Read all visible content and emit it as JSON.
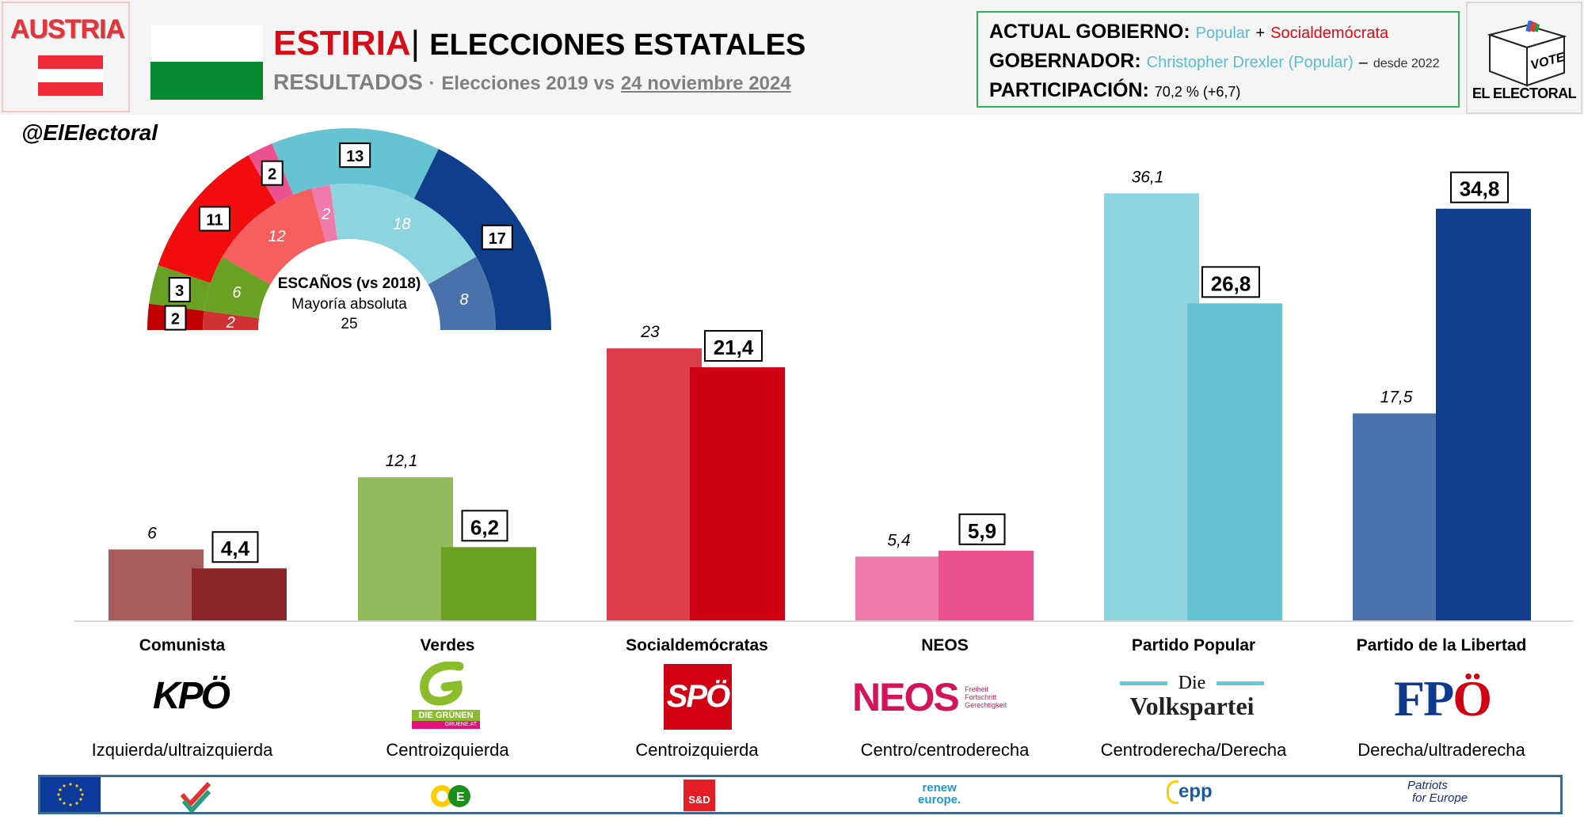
{
  "header": {
    "country": "AUSTRIA",
    "title_region": "ESTIRIA",
    "title_separator": "|",
    "title_rest": "ELECCIONES ESTATALES",
    "subtitle_main": "RESULTADOS",
    "subtitle_dot": "·",
    "subtitle_prefix": "Elecciones 2019 vs",
    "subtitle_date": "24 noviembre 2024",
    "colors": {
      "title_region": "#d40d18",
      "flag_red": "#ee2b3b",
      "region_flag_green": "#078930"
    }
  },
  "info": {
    "gov_label": "ACTUAL GOBIERNO:",
    "gov_party1": "Popular",
    "gov_plus": "+",
    "gov_party2": "Socialdemócrata",
    "governor_label": "GOBERNADOR:",
    "governor_name": "Christopher Drexler (Popular)",
    "governor_dash": "–",
    "governor_since": "desde 2022",
    "turnout_label": "PARTICIPACIÓN:",
    "turnout_value": "70,2 % (+6,7)"
  },
  "brand": {
    "vote_text": "VOTE",
    "name": "EL ELECTORAL",
    "handle": "@ElElectoral"
  },
  "hemicycle": {
    "center_title": "ESCAÑOS (vs 2018)",
    "center_line2": "Mayoría absoluta",
    "center_line3": "25"
  },
  "chart_data": [
    {
      "type": "bar",
      "title": "Resultados (%) Elecciones 2019 vs 2024",
      "categories": [
        "Comunista",
        "Verdes",
        "Socialdemócratas",
        "NEOS",
        "Partido Popular",
        "Partido de la Libertad"
      ],
      "series": [
        {
          "name": "2019",
          "values": [
            6,
            12.1,
            23,
            5.4,
            36.1,
            17.5
          ],
          "labels": [
            "6",
            "12,1",
            "23",
            "5,4",
            "36,1",
            "17,5"
          ],
          "colors": [
            "#a85c5c",
            "#92bb5c",
            "#db3e4a",
            "#ef7bab",
            "#8dd4de",
            "#4a71aa"
          ]
        },
        {
          "name": "2024",
          "values": [
            4.4,
            6.2,
            21.4,
            5.9,
            26.8,
            34.8
          ],
          "labels": [
            "4,4",
            "6,2",
            "21,4",
            "5,9",
            "26,8",
            "34,8"
          ],
          "colors": [
            "#8b262a",
            "#6aa124",
            "#cf0011",
            "#ea5290",
            "#65c3d2",
            "#0f3f8c"
          ]
        }
      ],
      "ylim": [
        0,
        40
      ],
      "xlabel": "",
      "ylabel": "",
      "grid": false,
      "ideology": [
        "Izquierda/ultraizquierda",
        "Centroizquierda",
        "Centroizquierda",
        "Centro/centroderecha",
        "Centroderecha/Derecha",
        "Derecha/ultraderecha"
      ],
      "logos": [
        "KPÖ",
        "DIE GRÜNEN",
        "SPÖ",
        "NEOS",
        "Die Volkspartei",
        "FPÖ"
      ]
    },
    {
      "type": "pie",
      "title": "ESCAÑOS (vs 2018)",
      "subtitle": "Mayoría absoluta 25",
      "total_seats": 48,
      "rings": [
        {
          "name": "2024",
          "ring": "outer",
          "parties": [
            "KPÖ",
            "Verdes",
            "SPÖ",
            "NEOS",
            "ÖVP",
            "FPÖ"
          ],
          "values": [
            2,
            3,
            11,
            2,
            13,
            17
          ],
          "colors": [
            "#c00000",
            "#6aa124",
            "#f10d0d",
            "#ea5290",
            "#65c3d2",
            "#0f3f8c"
          ]
        },
        {
          "name": "2019",
          "ring": "inner",
          "parties": [
            "KPÖ",
            "Verdes",
            "SPÖ",
            "NEOS",
            "ÖVP",
            "FPÖ"
          ],
          "values": [
            2,
            6,
            12,
            2,
            18,
            8
          ],
          "colors": [
            "#cf3232",
            "#6aa124",
            "#f75f5f",
            "#ef7bab",
            "#8dd4de",
            "#4a71aa"
          ]
        }
      ]
    }
  ],
  "eu_groups": [
    "The Left",
    "Greens/EFA",
    "S&D",
    "renew europe.",
    "epp",
    "Patriots for Europe"
  ],
  "logo_texts": {
    "kpo": "KPÖ",
    "grune_top": "DIE GRÜNEN",
    "grune_bottom": "GRUENE.AT",
    "spo": "SPÖ",
    "neos": "NEOS",
    "neos_tag1": "Freiheit",
    "neos_tag2": "Fortschritt",
    "neos_tag3": "Gerechtigkeit",
    "ovp_top": "Die",
    "ovp_bottom": "Volkspartei",
    "fpo_fp": "FP",
    "fpo_o": "Ö",
    "sd": "S&D",
    "renew1": "renew",
    "renew2": "europe.",
    "epp": "epp",
    "patriots1": "Patriots",
    "patriots2": "for Europe"
  }
}
